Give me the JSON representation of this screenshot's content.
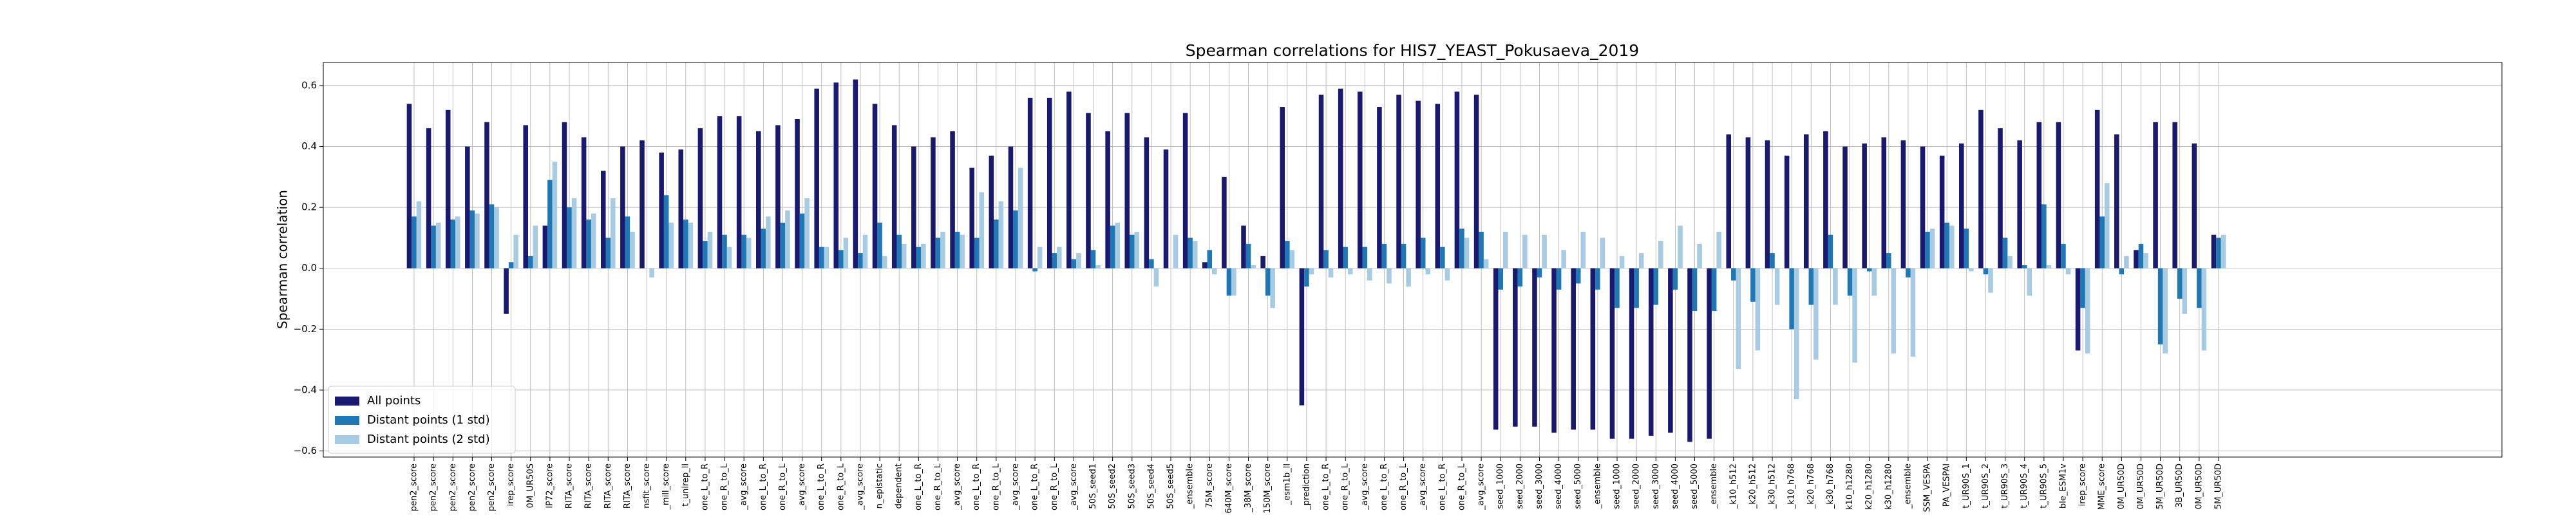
{
  "chart_data": {
    "type": "bar",
    "title": "Spearman correlations for HIS7_YEAST_Pokusaeva_2019",
    "y_label": "Spearman correlation",
    "categories": [
      "pen2_score",
      "pen2_score",
      "pen2_score",
      "pen2_score",
      "pen2_score",
      "irep_score",
      "0M_UR50S",
      "IP72_score",
      "RITA_score",
      "RITA_score",
      "RITA_score",
      "RITA_score",
      "nsfit_score",
      "_mill_score",
      "t_unirep_ll",
      "one_L_to_R",
      "one_R_to_L",
      "_avg_score",
      "one_L_to_R",
      "one_R_to_L",
      "_avg_score",
      "one_L_to_R",
      "one_R_to_L",
      "_avg_score",
      "n_epistatic",
      "dependent",
      "one_L_to_R",
      "one_R_to_L",
      "_avg_score",
      "one_L_to_R",
      "one_R_to_L",
      "_avg_score",
      "one_L_to_R",
      "one_R_to_L",
      "_avg_score",
      "50S_seed1",
      "50S_seed2",
      "50S_seed3",
      "50S_seed4",
      "50S_seed5",
      "_ensemble",
      "75M_score",
      "640M_score",
      "_38M_score",
      "150M_score",
      "_esm1b_ll",
      "_prediction",
      "one_L_to_R",
      "one_R_to_L",
      "_avg_score",
      "one_L_to_R",
      "one_R_to_L",
      "_avg_score",
      "one_L_to_R",
      "one_R_to_L",
      "_avg_score",
      "seed_1000",
      "seed_2000",
      "seed_3000",
      "seed_4000",
      "seed_5000",
      "_ensemble",
      "seed_1000",
      "seed_2000",
      "seed_3000",
      "seed_4000",
      "seed_5000",
      "_ensemble",
      "_k10_h512",
      "_k20_h512",
      "_k30_h512",
      "_k10_h768",
      "_k20_h768",
      "_k30_h768",
      "k10_h1280",
      "k20_h1280",
      "k30_h1280",
      "_ensemble",
      "SSM_VESPA",
      "PA_VESPAl",
      "t_UR90S_1",
      "t_UR90S_2",
      "t_UR90S_3",
      "t_UR90S_4",
      "t_UR90S_5",
      "ble_ESM1v",
      "irep_score",
      "MME_score",
      "0M_UR50D",
      "0M_UR50D",
      "5M_UR50D",
      "3B_UR50D",
      "0M_UR50D",
      "5M_UR50D"
    ],
    "series": [
      {
        "name": "All points",
        "color": "#191970",
        "values": [
          0.54,
          0.46,
          0.52,
          0.4,
          0.48,
          -0.15,
          0.47,
          0.14,
          0.48,
          0.43,
          0.32,
          0.4,
          0.42,
          0.38,
          0.39,
          0.46,
          0.5,
          0.5,
          0.45,
          0.47,
          0.49,
          0.59,
          0.61,
          0.62,
          0.54,
          0.47,
          0.4,
          0.43,
          0.45,
          0.33,
          0.37,
          0.4,
          0.56,
          0.56,
          0.58,
          0.51,
          0.45,
          0.51,
          0.43,
          0.39,
          0.51,
          0.02,
          0.3,
          0.14,
          0.04,
          0.53,
          -0.45,
          0.57,
          0.59,
          0.58,
          0.53,
          0.57,
          0.55,
          0.54,
          0.58,
          0.57,
          -0.53,
          -0.52,
          -0.52,
          -0.54,
          -0.53,
          -0.53,
          -0.56,
          -0.56,
          -0.55,
          -0.54,
          -0.57,
          -0.56,
          0.44,
          0.43,
          0.42,
          0.37,
          0.44,
          0.45,
          0.4,
          0.41,
          0.43,
          0.42,
          0.4,
          0.37,
          0.41,
          0.52,
          0.46,
          0.42,
          0.48,
          0.48,
          -0.27,
          0.52,
          0.44,
          0.06,
          0.48,
          0.48,
          0.41,
          0.11
        ]
      },
      {
        "name": "Distant points (1 std)",
        "color": "#1f77b4",
        "values": [
          0.17,
          0.14,
          0.16,
          0.19,
          0.21,
          0.02,
          0.04,
          0.29,
          0.2,
          0.16,
          0.1,
          0.17,
          0.0,
          0.24,
          0.16,
          0.09,
          0.11,
          0.11,
          0.13,
          0.15,
          0.18,
          0.07,
          0.06,
          0.05,
          0.15,
          0.11,
          0.07,
          0.1,
          0.12,
          0.1,
          0.16,
          0.19,
          -0.01,
          0.05,
          0.03,
          0.06,
          0.14,
          0.11,
          0.03,
          0.0,
          0.1,
          0.06,
          -0.09,
          0.08,
          -0.09,
          0.09,
          -0.06,
          0.06,
          0.07,
          0.07,
          0.08,
          0.08,
          0.1,
          0.07,
          0.13,
          0.12,
          -0.07,
          -0.06,
          -0.03,
          -0.07,
          -0.05,
          -0.07,
          -0.13,
          -0.13,
          -0.12,
          -0.07,
          -0.14,
          -0.14,
          -0.04,
          -0.11,
          0.05,
          -0.2,
          -0.12,
          0.11,
          -0.09,
          -0.01,
          0.05,
          -0.03,
          0.12,
          0.15,
          0.13,
          -0.02,
          0.1,
          0.01,
          0.21,
          0.08,
          -0.13,
          0.17,
          -0.02,
          0.08,
          -0.25,
          -0.1,
          -0.13,
          0.1
        ]
      },
      {
        "name": "Distant points (2 std)",
        "color": "#a6cbe3",
        "values": [
          0.22,
          0.15,
          0.17,
          0.18,
          0.2,
          0.11,
          0.14,
          0.35,
          0.23,
          0.18,
          0.23,
          0.12,
          -0.03,
          0.15,
          0.15,
          0.12,
          0.07,
          0.1,
          0.17,
          0.19,
          0.23,
          0.07,
          0.1,
          0.11,
          0.04,
          0.08,
          0.08,
          0.12,
          0.11,
          0.25,
          0.22,
          0.33,
          0.07,
          0.07,
          0.05,
          0.01,
          0.15,
          0.12,
          -0.06,
          0.11,
          0.09,
          -0.02,
          -0.09,
          0.01,
          -0.13,
          0.06,
          -0.02,
          -0.03,
          -0.02,
          -0.04,
          -0.05,
          -0.06,
          -0.02,
          -0.04,
          0.1,
          0.03,
          0.12,
          0.11,
          0.11,
          0.06,
          0.12,
          0.1,
          0.04,
          0.05,
          0.09,
          0.14,
          0.08,
          0.12,
          -0.33,
          -0.27,
          -0.12,
          -0.43,
          -0.3,
          -0.12,
          -0.31,
          -0.09,
          -0.28,
          -0.29,
          0.13,
          0.14,
          -0.01,
          -0.08,
          0.04,
          -0.09,
          0.01,
          -0.02,
          -0.28,
          0.28,
          0.04,
          0.05,
          -0.28,
          -0.15,
          -0.27,
          0.11
        ]
      }
    ],
    "ylim": [
      -0.62,
      0.676
    ],
    "yticks": [
      {
        "value": -0.6,
        "label": "−0.6"
      },
      {
        "value": -0.4,
        "label": "−0.4"
      },
      {
        "value": -0.2,
        "label": "−0.2"
      },
      {
        "value": 0,
        "label": "0.0"
      },
      0.2,
      0.4,
      0.6
    ],
    "grid": true,
    "legend": "lower left"
  }
}
